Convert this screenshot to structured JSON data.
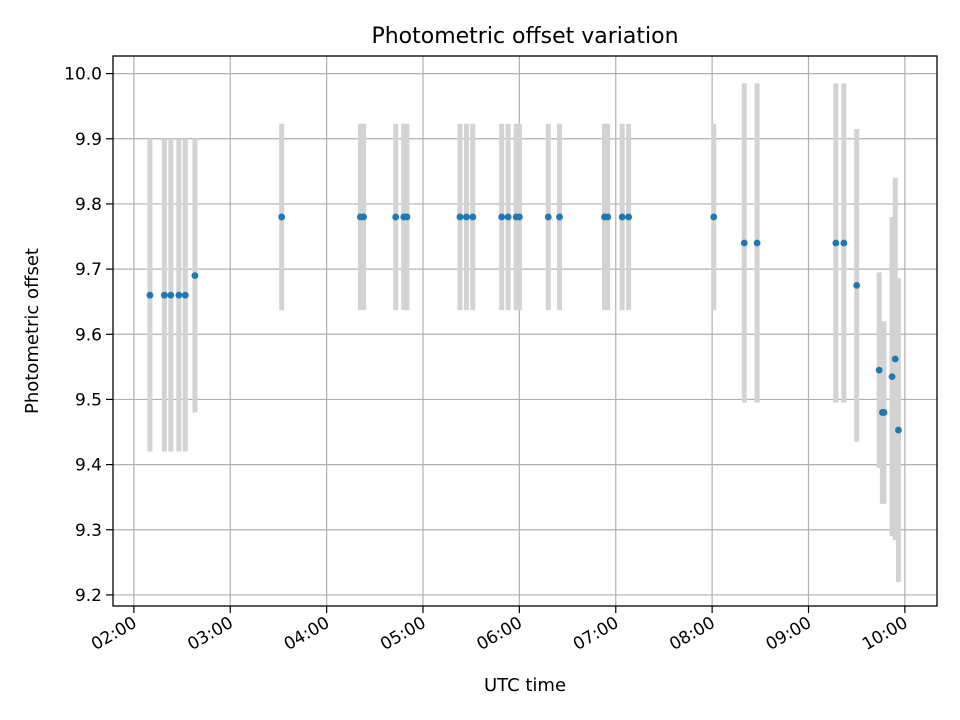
{
  "chart_data": {
    "type": "scatter",
    "title": "Photometric offset variation",
    "xlabel": "UTC time",
    "ylabel": "Photometric offset",
    "x_unit": "UTC time (HH:MM)",
    "xlim": [
      "01:47",
      "10:20"
    ],
    "ylim": [
      9.183,
      10.027
    ],
    "x_tick_labels": [
      "02:00",
      "03:00",
      "04:00",
      "05:00",
      "06:00",
      "07:00",
      "08:00",
      "09:00",
      "10:00"
    ],
    "y_tick_labels": [
      "9.2",
      "9.3",
      "9.4",
      "9.5",
      "9.6",
      "9.7",
      "9.8",
      "9.9",
      "10.0"
    ],
    "grid": true,
    "legend": "none",
    "colors": {
      "point": "#1f77b4",
      "errorbar": "#d3d3d3",
      "grid": "#b0b0b0"
    },
    "points": [
      {
        "x": "02:10",
        "y": 9.66,
        "yerr": 0.24
      },
      {
        "x": "02:19",
        "y": 9.66,
        "yerr": 0.24
      },
      {
        "x": "02:23",
        "y": 9.66,
        "yerr": 0.24
      },
      {
        "x": "02:28",
        "y": 9.66,
        "yerr": 0.24
      },
      {
        "x": "02:32",
        "y": 9.66,
        "yerr": 0.24
      },
      {
        "x": "02:38",
        "y": 9.69,
        "yerr": 0.21
      },
      {
        "x": "03:32",
        "y": 9.78,
        "yerr": 0.143
      },
      {
        "x": "04:21",
        "y": 9.78,
        "yerr": 0.143
      },
      {
        "x": "04:23",
        "y": 9.78,
        "yerr": 0.143
      },
      {
        "x": "04:43",
        "y": 9.78,
        "yerr": 0.143
      },
      {
        "x": "04:48",
        "y": 9.78,
        "yerr": 0.143
      },
      {
        "x": "04:50",
        "y": 9.78,
        "yerr": 0.143
      },
      {
        "x": "05:23",
        "y": 9.78,
        "yerr": 0.143
      },
      {
        "x": "05:27",
        "y": 9.78,
        "yerr": 0.143
      },
      {
        "x": "05:31",
        "y": 9.78,
        "yerr": 0.143
      },
      {
        "x": "05:49",
        "y": 9.78,
        "yerr": 0.143
      },
      {
        "x": "05:53",
        "y": 9.78,
        "yerr": 0.143
      },
      {
        "x": "05:58",
        "y": 9.78,
        "yerr": 0.143
      },
      {
        "x": "06:00",
        "y": 9.78,
        "yerr": 0.143
      },
      {
        "x": "06:18",
        "y": 9.78,
        "yerr": 0.143
      },
      {
        "x": "06:25",
        "y": 9.78,
        "yerr": 0.143
      },
      {
        "x": "06:53",
        "y": 9.78,
        "yerr": 0.143
      },
      {
        "x": "06:55",
        "y": 9.78,
        "yerr": 0.143
      },
      {
        "x": "07:04",
        "y": 9.78,
        "yerr": 0.143
      },
      {
        "x": "07:08",
        "y": 9.78,
        "yerr": 0.143
      },
      {
        "x": "08:01",
        "y": 9.78,
        "yerr": 0.143
      },
      {
        "x": "08:20",
        "y": 9.74,
        "yerr": 0.245
      },
      {
        "x": "08:28",
        "y": 9.74,
        "yerr": 0.245
      },
      {
        "x": "09:17",
        "y": 9.74,
        "yerr": 0.245
      },
      {
        "x": "09:22",
        "y": 9.74,
        "yerr": 0.245
      },
      {
        "x": "09:30",
        "y": 9.675,
        "yerr": 0.24
      },
      {
        "x": "09:44",
        "y": 9.545,
        "yerr": 0.15
      },
      {
        "x": "09:46",
        "y": 9.48,
        "yerr": 0.14
      },
      {
        "x": "09:47",
        "y": 9.48,
        "yerr": 0.14
      },
      {
        "x": "09:52",
        "y": 9.535,
        "yerr": 0.245
      },
      {
        "x": "09:54",
        "y": 9.562,
        "yerr": 0.278
      },
      {
        "x": "09:56",
        "y": 9.453,
        "yerr": 0.233
      }
    ]
  }
}
